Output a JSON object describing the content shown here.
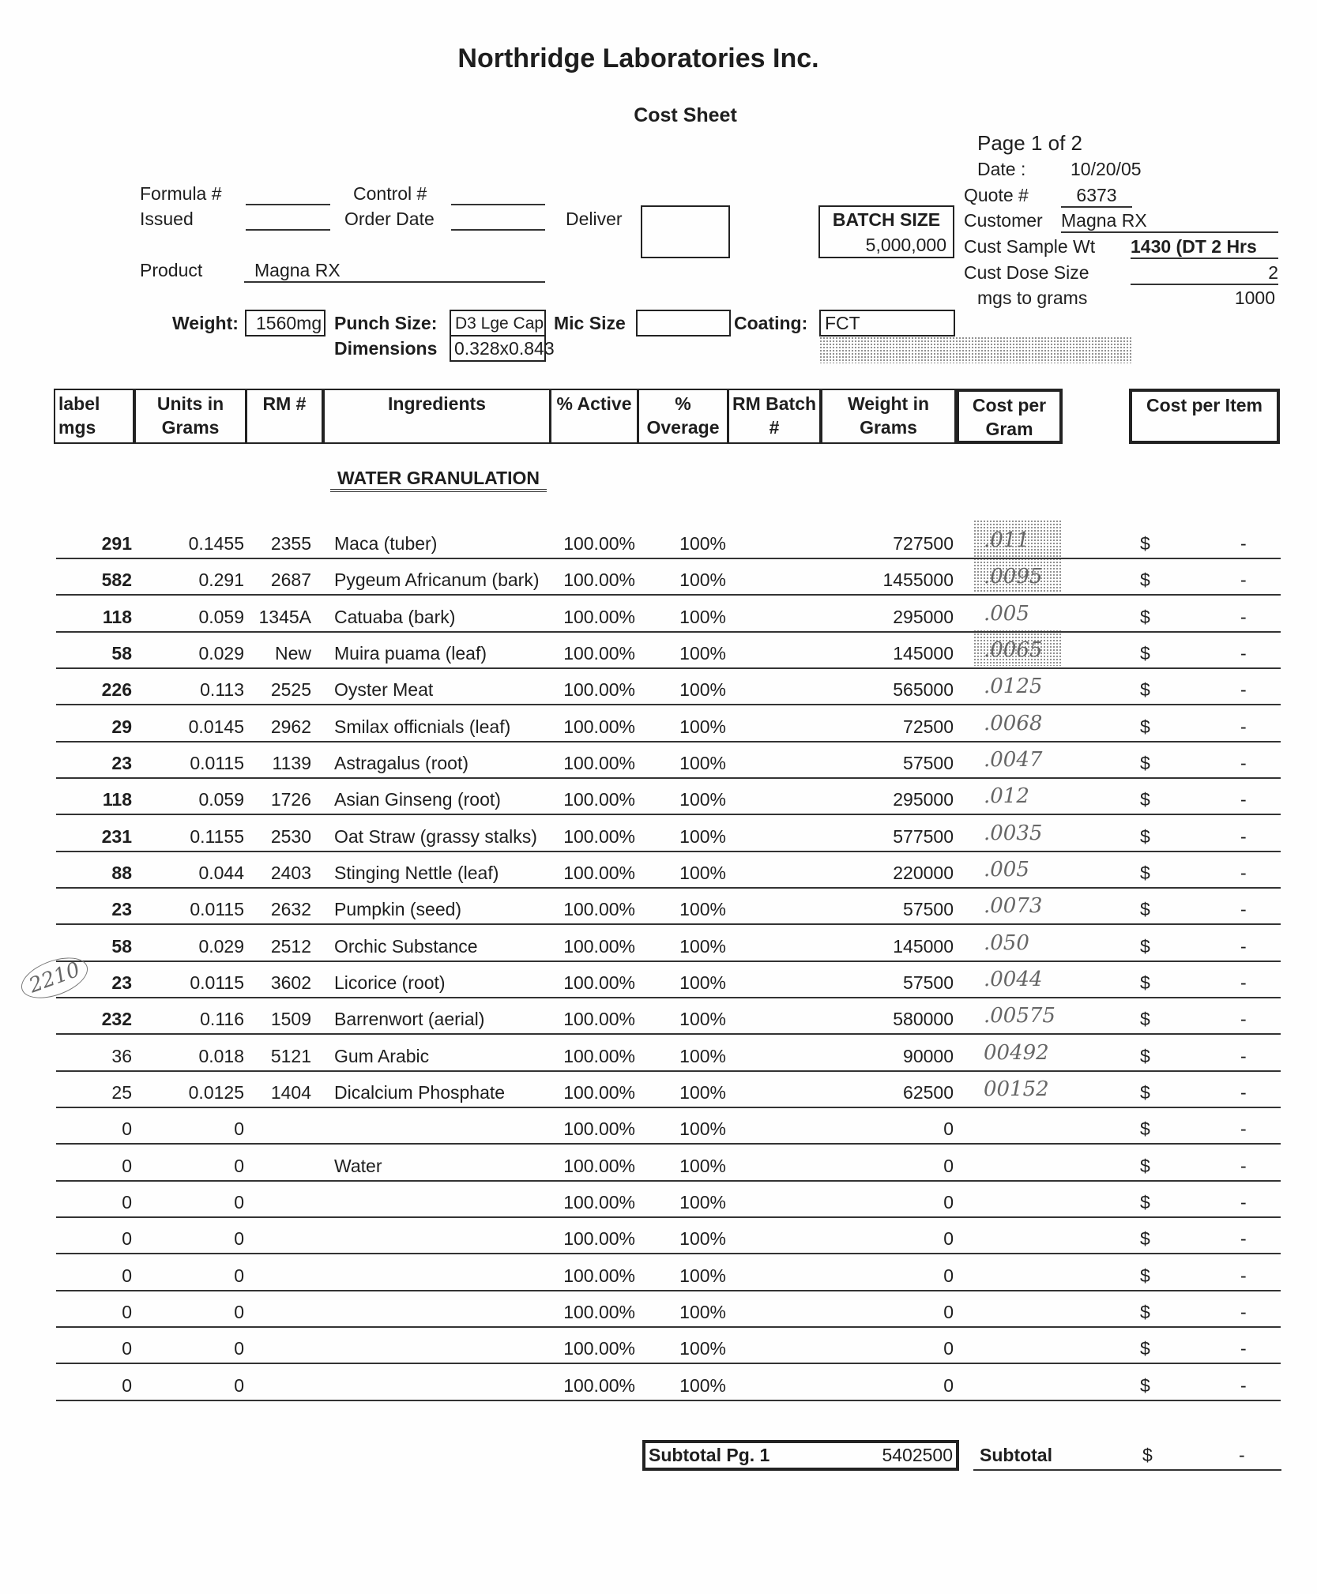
{
  "company": "Northridge Laboratories Inc.",
  "doc_title": "Cost Sheet",
  "page": "Page 1 of 2",
  "fields": {
    "date_label": "Date :",
    "date": "10/20/05",
    "quote_label": "Quote #",
    "quote": "6373",
    "customer_label": "Customer",
    "customer": "Magna RX",
    "sample_label": "Cust Sample Wt",
    "sample": "1430 (DT 2 Hrs",
    "dose_label": "Cust Dose Size",
    "dose": "2",
    "mgs_label": "mgs to grams",
    "mgs": "1000",
    "formula_label": "Formula #",
    "issued_label": "Issued",
    "control_label": "Control #",
    "order_label": "Order Date",
    "deliver_label": "Deliver",
    "batch_label": "BATCH SIZE",
    "batch": "5,000,000",
    "product_label": "Product",
    "product": "Magna RX",
    "weight_label": "Weight:",
    "weight": "1560mg",
    "punch_label": "Punch Size:",
    "punch": "D3 Lge Cap",
    "dim_label": "Dimensions",
    "dim": "0.328x0.843",
    "mic_label": "Mic Size",
    "coating_label": "Coating:",
    "coating": "FCT"
  },
  "columns": [
    "label mgs",
    "Units in Grams",
    "RM #",
    "Ingredients",
    "% Active",
    "% Overage",
    "RM Batch #",
    "Weight in Grams",
    "Cost per Gram",
    "Cost per Item"
  ],
  "section": "WATER GRANULATION",
  "rows": [
    {
      "mg": "291",
      "g": "0.1455",
      "rm": "2355",
      "ing": "Maca (tuber)",
      "act": "100.00%",
      "ov": "100%",
      "wt": "727500",
      "hw": ".011",
      "cur": "$",
      "item": "-"
    },
    {
      "mg": "582",
      "g": "0.291",
      "rm": "2687",
      "ing": "Pygeum Africanum (bark)",
      "act": "100.00%",
      "ov": "100%",
      "wt": "1455000",
      "hw": ".0095",
      "cur": "$",
      "item": "-"
    },
    {
      "mg": "118",
      "g": "0.059",
      "rm": "1345A",
      "ing": "Catuaba (bark)",
      "act": "100.00%",
      "ov": "100%",
      "wt": "295000",
      "hw": ".005",
      "cur": "$",
      "item": "-"
    },
    {
      "mg": "58",
      "g": "0.029",
      "rm": "New",
      "ing": "Muira puama (leaf)",
      "act": "100.00%",
      "ov": "100%",
      "wt": "145000",
      "hw": ".0065",
      "cur": "$",
      "item": "-"
    },
    {
      "mg": "226",
      "g": "0.113",
      "rm": "2525",
      "ing": "Oyster Meat",
      "act": "100.00%",
      "ov": "100%",
      "wt": "565000",
      "hw": ".0125",
      "cur": "$",
      "item": "-"
    },
    {
      "mg": "29",
      "g": "0.0145",
      "rm": "2962",
      "ing": "Smilax officnials (leaf)",
      "act": "100.00%",
      "ov": "100%",
      "wt": "72500",
      "hw": ".0068",
      "cur": "$",
      "item": "-"
    },
    {
      "mg": "23",
      "g": "0.0115",
      "rm": "1139",
      "ing": "Astragalus (root)",
      "act": "100.00%",
      "ov": "100%",
      "wt": "57500",
      "hw": ".0047",
      "cur": "$",
      "item": "-"
    },
    {
      "mg": "118",
      "g": "0.059",
      "rm": "1726",
      "ing": "Asian Ginseng (root)",
      "act": "100.00%",
      "ov": "100%",
      "wt": "295000",
      "hw": ".012",
      "cur": "$",
      "item": "-"
    },
    {
      "mg": "231",
      "g": "0.1155",
      "rm": "2530",
      "ing": "Oat Straw (grassy stalks)",
      "act": "100.00%",
      "ov": "100%",
      "wt": "577500",
      "hw": ".0035",
      "cur": "$",
      "item": "-"
    },
    {
      "mg": "88",
      "g": "0.044",
      "rm": "2403",
      "ing": "Stinging Nettle (leaf)",
      "act": "100.00%",
      "ov": "100%",
      "wt": "220000",
      "hw": ".005",
      "cur": "$",
      "item": "-"
    },
    {
      "mg": "23",
      "g": "0.0115",
      "rm": "2632",
      "ing": "Pumpkin (seed)",
      "act": "100.00%",
      "ov": "100%",
      "wt": "57500",
      "hw": ".0073",
      "cur": "$",
      "item": "-"
    },
    {
      "mg": "58",
      "g": "0.029",
      "rm": "2512",
      "ing": "Orchic Substance",
      "act": "100.00%",
      "ov": "100%",
      "wt": "145000",
      "hw": ".050",
      "cur": "$",
      "item": "-"
    },
    {
      "mg": "23",
      "g": "0.0115",
      "rm": "3602",
      "ing": "Licorice (root)",
      "act": "100.00%",
      "ov": "100%",
      "wt": "57500",
      "hw": ".0044",
      "cur": "$",
      "item": "-"
    },
    {
      "mg": "232",
      "g": "0.116",
      "rm": "1509",
      "ing": "Barrenwort (aerial)",
      "act": "100.00%",
      "ov": "100%",
      "wt": "580000",
      "hw": ".00575",
      "cur": "$",
      "item": "-"
    },
    {
      "mg": "36",
      "g": "0.018",
      "rm": "5121",
      "ing": "Gum Arabic",
      "act": "100.00%",
      "ov": "100%",
      "wt": "90000",
      "hw": "00492",
      "cur": "$",
      "item": "-"
    },
    {
      "mg": "25",
      "g": "0.0125",
      "rm": "1404",
      "ing": "Dicalcium Phosphate",
      "act": "100.00%",
      "ov": "100%",
      "wt": "62500",
      "hw": "00152",
      "cur": "$",
      "item": "-"
    },
    {
      "mg": "0",
      "g": "0",
      "rm": "",
      "ing": "",
      "act": "100.00%",
      "ov": "100%",
      "wt": "0",
      "hw": "",
      "cur": "$",
      "item": "-"
    },
    {
      "mg": "0",
      "g": "0",
      "rm": "",
      "ing": "Water",
      "act": "100.00%",
      "ov": "100%",
      "wt": "0",
      "hw": "",
      "cur": "$",
      "item": "-"
    },
    {
      "mg": "0",
      "g": "0",
      "rm": "",
      "ing": "",
      "act": "100.00%",
      "ov": "100%",
      "wt": "0",
      "hw": "",
      "cur": "$",
      "item": "-"
    },
    {
      "mg": "0",
      "g": "0",
      "rm": "",
      "ing": "",
      "act": "100.00%",
      "ov": "100%",
      "wt": "0",
      "hw": "",
      "cur": "$",
      "item": "-"
    },
    {
      "mg": "0",
      "g": "0",
      "rm": "",
      "ing": "",
      "act": "100.00%",
      "ov": "100%",
      "wt": "0",
      "hw": "",
      "cur": "$",
      "item": "-"
    },
    {
      "mg": "0",
      "g": "0",
      "rm": "",
      "ing": "",
      "act": "100.00%",
      "ov": "100%",
      "wt": "0",
      "hw": "",
      "cur": "$",
      "item": "-"
    },
    {
      "mg": "0",
      "g": "0",
      "rm": "",
      "ing": "",
      "act": "100.00%",
      "ov": "100%",
      "wt": "0",
      "hw": "",
      "cur": "$",
      "item": "-"
    },
    {
      "mg": "0",
      "g": "0",
      "rm": "",
      "ing": "",
      "act": "100.00%",
      "ov": "100%",
      "wt": "0",
      "hw": "",
      "cur": "$",
      "item": "-"
    }
  ],
  "handwritten_margin": "2210",
  "footer": {
    "subtotal_pg_label": "Subtotal Pg. 1",
    "subtotal_pg": "5402500",
    "subtotal_label": "Subtotal",
    "cur": "$",
    "subtotal": "-"
  }
}
